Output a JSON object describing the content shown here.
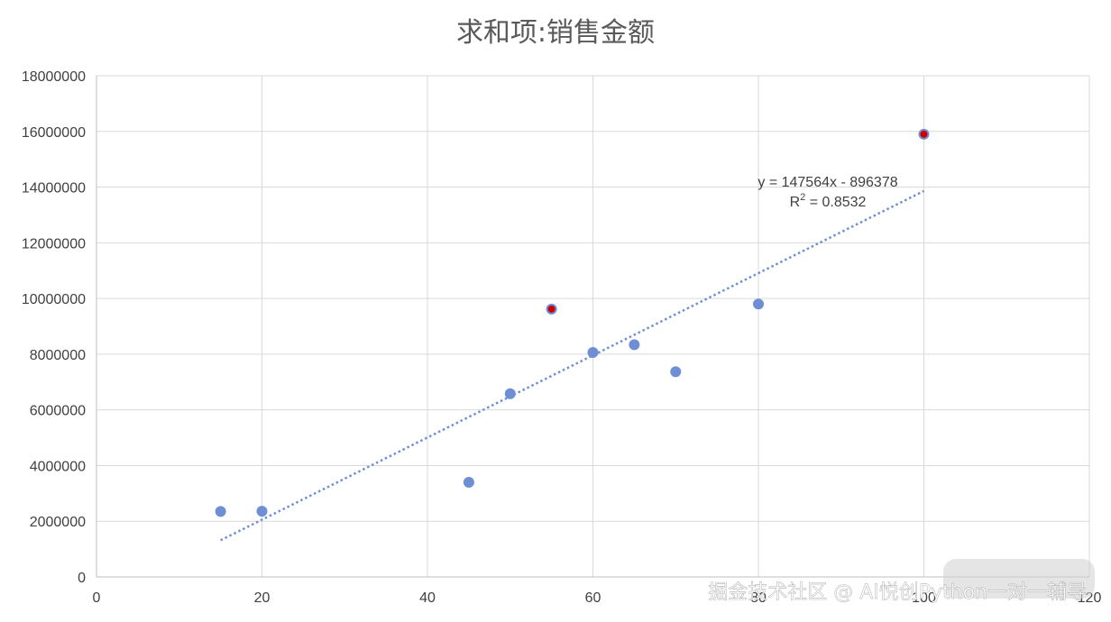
{
  "chart_data": {
    "type": "scatter",
    "title": "求和项:销售金额",
    "xlabel": "",
    "ylabel": "",
    "xlim": [
      0,
      120
    ],
    "ylim": [
      0,
      18000000
    ],
    "x_ticks": [
      0,
      20,
      40,
      60,
      80,
      100,
      120
    ],
    "y_ticks": [
      0,
      2000000,
      4000000,
      6000000,
      8000000,
      10000000,
      12000000,
      14000000,
      16000000,
      18000000
    ],
    "x_tick_labels": [
      "0",
      "20",
      "40",
      "60",
      "80",
      "100",
      "120"
    ],
    "y_tick_labels": [
      "0",
      "2000000",
      "4000000",
      "6000000",
      "8000000",
      "10000000",
      "12000000",
      "14000000",
      "16000000",
      "18000000"
    ],
    "grid": true,
    "legend": "none",
    "points": [
      {
        "x": 15,
        "y": 2350000,
        "highlight": false
      },
      {
        "x": 20,
        "y": 2360000,
        "highlight": false
      },
      {
        "x": 45,
        "y": 3400000,
        "highlight": false
      },
      {
        "x": 50,
        "y": 6580000,
        "highlight": false
      },
      {
        "x": 55,
        "y": 9620000,
        "highlight": true
      },
      {
        "x": 60,
        "y": 8060000,
        "highlight": false
      },
      {
        "x": 65,
        "y": 8340000,
        "highlight": false
      },
      {
        "x": 70,
        "y": 7370000,
        "highlight": false
      },
      {
        "x": 80,
        "y": 9800000,
        "highlight": false
      },
      {
        "x": 100,
        "y": 15900000,
        "highlight": true
      }
    ],
    "trendline": {
      "type": "linear",
      "slope": 147564,
      "intercept": -896378,
      "x_range": [
        15,
        100
      ],
      "equation_label": "y = 147564x - 896378",
      "r_squared_prefix": "R",
      "r_squared_sup": "2",
      "r_squared_value": " = 0.8532"
    },
    "colors": {
      "marker": "#6f8fd4",
      "highlight_fill": "#cc0000",
      "highlight_stroke": "#6f8fd4",
      "trendline": "#6f8fd4",
      "grid": "#d9d9d9",
      "axis": "#bfbfbf"
    }
  },
  "watermark": {
    "text": "掘金技术社区 @ AI悦创Python一对一辅导"
  }
}
